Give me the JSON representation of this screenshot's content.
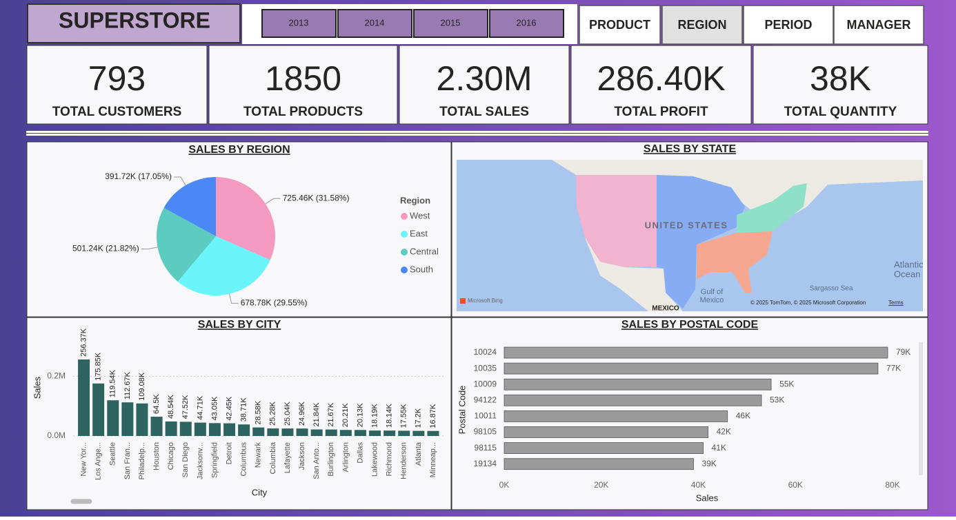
{
  "header": {
    "title": "SUPERSTORE",
    "years": [
      "2013",
      "2014",
      "2015",
      "2016"
    ],
    "nav": [
      "PRODUCT",
      "REGION",
      "PERIOD",
      "MANAGER"
    ]
  },
  "kpis": [
    {
      "value": "793",
      "label": "TOTAL CUSTOMERS"
    },
    {
      "value": "1850",
      "label": "TOTAL PRODUCTS"
    },
    {
      "value": "2.30M",
      "label": "TOTAL SALES"
    },
    {
      "value": "286.40K",
      "label": "TOTAL PROFIT"
    },
    {
      "value": "38K",
      "label": "TOTAL QUANTITY"
    }
  ],
  "map": {
    "title": "SALES BY STATE",
    "country": "UNITED STATES",
    "gulf": [
      "Gulf of",
      "Mexico"
    ],
    "mexico": "MEXICO",
    "ocean": [
      "Atlantic",
      "Ocean"
    ],
    "sea": "Sargasso Sea",
    "brand": "Microsoft Bing",
    "copyright": "© 2025 TomTom, © 2025 Microsoft Corporation",
    "terms": "Terms"
  },
  "chart_data": [
    {
      "type": "pie",
      "title": "SALES BY REGION",
      "legend_title": "Region",
      "categories": [
        "West",
        "East",
        "Central",
        "South"
      ],
      "values": [
        725460,
        678780,
        501240,
        391720
      ],
      "value_labels": [
        "725.46K (31.58%)",
        "678.78K (29.55%)",
        "501.24K (21.82%)",
        "391.72K (17.05%)"
      ],
      "colors": [
        "#f49ac1",
        "#6af4fb",
        "#5ccbc0",
        "#4a88f6"
      ]
    },
    {
      "type": "bar",
      "orientation": "vertical",
      "title": "SALES BY CITY",
      "xlabel": "City",
      "ylabel": "Sales",
      "categories": [
        "New Yor...",
        "Los Ange...",
        "Seattle",
        "San Fran...",
        "Philadelp...",
        "Houston",
        "Chicago",
        "San Diego",
        "Jacksonv...",
        "Springfield",
        "Detroit",
        "Columbus",
        "Newark",
        "Columbia",
        "Lafayette",
        "Jackson",
        "San Anto...",
        "Burlington",
        "Arlington",
        "Dallas",
        "Lakewood",
        "Richmond",
        "Henderson",
        "Atlanta",
        "Minneap..."
      ],
      "values": [
        256370,
        175850,
        119540,
        112670,
        109080,
        64500,
        48540,
        47520,
        44710,
        43050,
        42450,
        38710,
        28580,
        25280,
        25040,
        24960,
        21840,
        21670,
        20210,
        20130,
        18190,
        18140,
        17550,
        17200,
        16870
      ],
      "value_labels": [
        "256.37K",
        "175.85K",
        "119.54K",
        "112.67K",
        "109.08K",
        "64.5K",
        "48.54K",
        "47.52K",
        "44.71K",
        "43.05K",
        "42.45K",
        "38.71K",
        "28.58K",
        "25.28K",
        "25.04K",
        "24.96K",
        "21.84K",
        "21.67K",
        "20.21K",
        "20.13K",
        "18.19K",
        "18.14K",
        "17.55K",
        "17.2K",
        "16.87K"
      ],
      "color": "#2d6460",
      "ylim": [
        0,
        300000
      ],
      "yticks": [
        {
          "value": 0,
          "label": "0.0M"
        },
        {
          "value": 200000,
          "label": "0.2M"
        }
      ],
      "grid": true
    },
    {
      "type": "bar",
      "orientation": "horizontal",
      "title": "SALES BY POSTAL CODE",
      "xlabel": "Sales",
      "ylabel": "Postal Code",
      "categories": [
        "10024",
        "10035",
        "10009",
        "94122",
        "10011",
        "98105",
        "98115",
        "19134"
      ],
      "values": [
        79000,
        77000,
        55000,
        53000,
        46000,
        42000,
        41000,
        39000
      ],
      "value_labels": [
        "79K",
        "77K",
        "55K",
        "53K",
        "46K",
        "42K",
        "41K",
        "39K"
      ],
      "color": "#9b9b9b",
      "xlim": [
        0,
        80000
      ],
      "xticks": [
        {
          "value": 0,
          "label": "0K"
        },
        {
          "value": 20000,
          "label": "20K"
        },
        {
          "value": 40000,
          "label": "40K"
        },
        {
          "value": 60000,
          "label": "60K"
        },
        {
          "value": 80000,
          "label": "80K"
        }
      ]
    }
  ]
}
